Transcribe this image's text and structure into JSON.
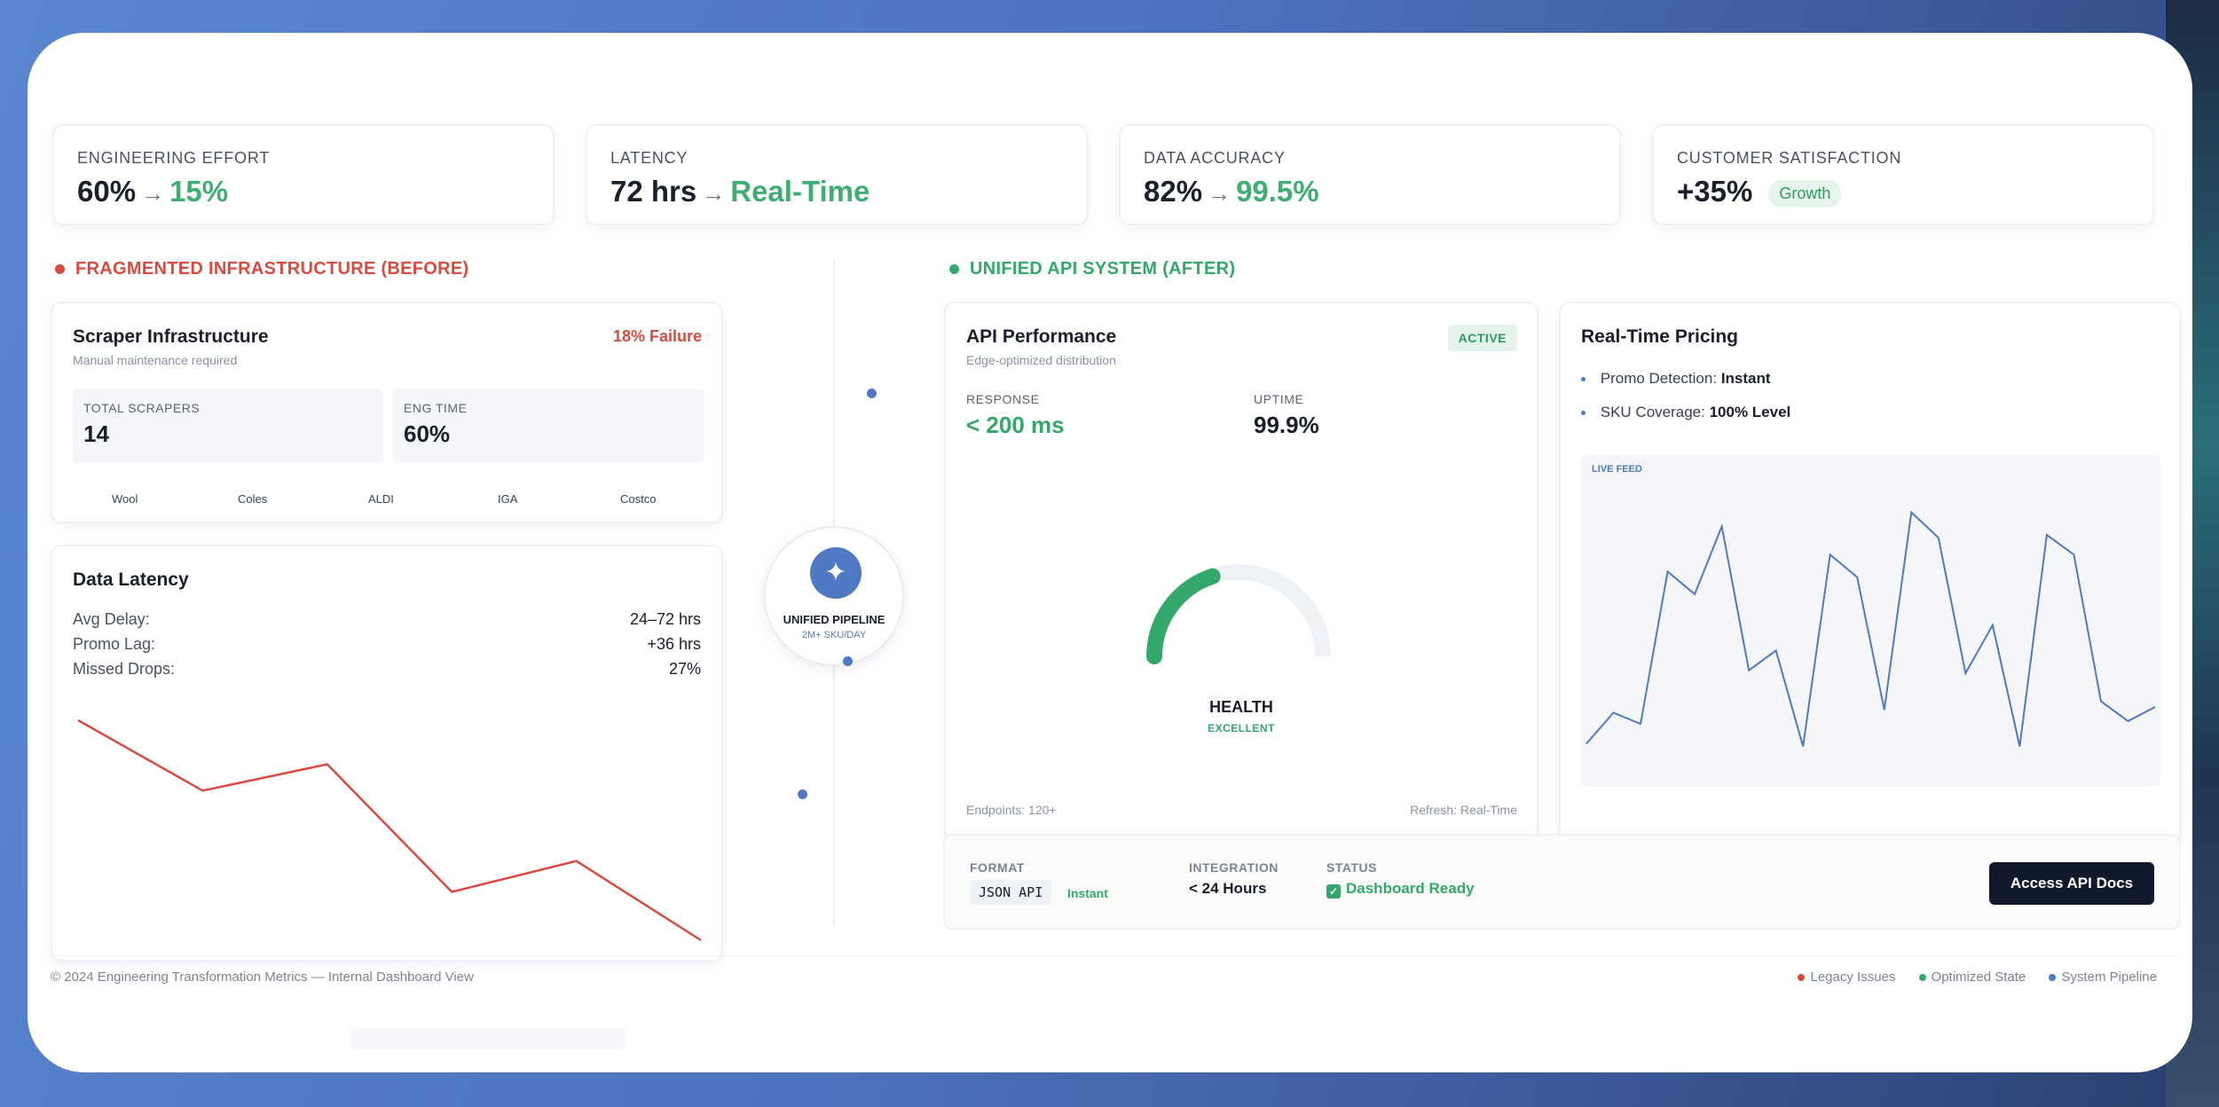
{
  "kpis": [
    {
      "label": "ENGINEERING EFFORT",
      "before": "60%",
      "after": "15%"
    },
    {
      "label": "LATENCY",
      "before": "72 hrs",
      "after": "Real-Time"
    },
    {
      "label": "DATA ACCURACY",
      "before": "82%",
      "after": "99.5%"
    },
    {
      "label": "CUSTOMER SATISFACTION",
      "value": "+35%",
      "badge": "Growth"
    }
  ],
  "arrow_glyph": "→",
  "before": {
    "section_title": "FRAGMENTED INFRASTRUCTURE (BEFORE)",
    "scraper": {
      "title": "Scraper Infrastructure",
      "subtitle": "Manual maintenance required",
      "failure": "18% Failure",
      "tiles": [
        {
          "label": "TOTAL SCRAPERS",
          "value": "14"
        },
        {
          "label": "ENG TIME",
          "value": "60%"
        }
      ],
      "stores": [
        "Wool",
        "Coles",
        "ALDI",
        "IGA",
        "Costco"
      ]
    },
    "latency": {
      "title": "Data Latency",
      "rows": [
        {
          "label": "Avg Delay:",
          "value": "24–72 hrs"
        },
        {
          "label": "Promo Lag:",
          "value": "+36 hrs"
        },
        {
          "label": "Missed Drops:",
          "value": "27%"
        }
      ]
    }
  },
  "pipeline": {
    "title": "UNIFIED PIPELINE",
    "subtitle": "2M+ SKU/DAY",
    "icon": "sparkle-icon"
  },
  "after": {
    "section_title": "UNIFIED API SYSTEM (AFTER)",
    "performance": {
      "title": "API Performance",
      "subtitle": "Edge-optimized distribution",
      "badge": "ACTIVE",
      "response_label": "RESPONSE",
      "response_value": "< 200 ms",
      "uptime_label": "UPTIME",
      "uptime_value": "99.9%",
      "gauge_label": "HEALTH",
      "gauge_status": "EXCELLENT",
      "gauge_fill": 0.4,
      "endpoints": "Endpoints: 120+",
      "refresh": "Refresh: Real-Time"
    },
    "pricing": {
      "title": "Real-Time Pricing",
      "bullets": [
        {
          "label": "Promo Detection:",
          "value": "Instant"
        },
        {
          "label": "SKU Coverage:",
          "value": "100% Level"
        }
      ],
      "feed_label": "LIVE FEED"
    }
  },
  "bottom_bar": {
    "format_label": "FORMAT",
    "format_value": "JSON API",
    "format_tag": "Instant",
    "integration_label": "INTEGRATION",
    "integration_value": "< 24 Hours",
    "status_label": "STATUS",
    "status_value": "Dashboard Ready",
    "button": "Access API Docs"
  },
  "footer": {
    "text": "© 2024 Engineering Transformation Metrics — Internal Dashboard View",
    "legend": [
      "Legacy Issues",
      "Optimized State",
      "System Pipeline"
    ]
  },
  "colors": {
    "legacy": "#d94a3f",
    "optimized": "#34a86b",
    "pipeline": "#4f79c2"
  },
  "chart_data": [
    {
      "type": "line",
      "x": [
        0,
        1,
        2,
        3,
        4,
        5
      ],
      "values": [
        100,
        68,
        80,
        22,
        36,
        0
      ]
    },
    {
      "type": "line",
      "x": [
        0,
        1,
        2,
        3,
        4,
        5,
        6,
        7,
        8,
        9,
        10,
        11,
        12,
        13,
        14,
        15,
        16,
        17,
        18,
        19,
        20,
        21
      ],
      "values": [
        9,
        20,
        16,
        70,
        62,
        86,
        35,
        42,
        8,
        76,
        68,
        21,
        91,
        82,
        34,
        51,
        8,
        83,
        76,
        24,
        17,
        22
      ]
    }
  ]
}
